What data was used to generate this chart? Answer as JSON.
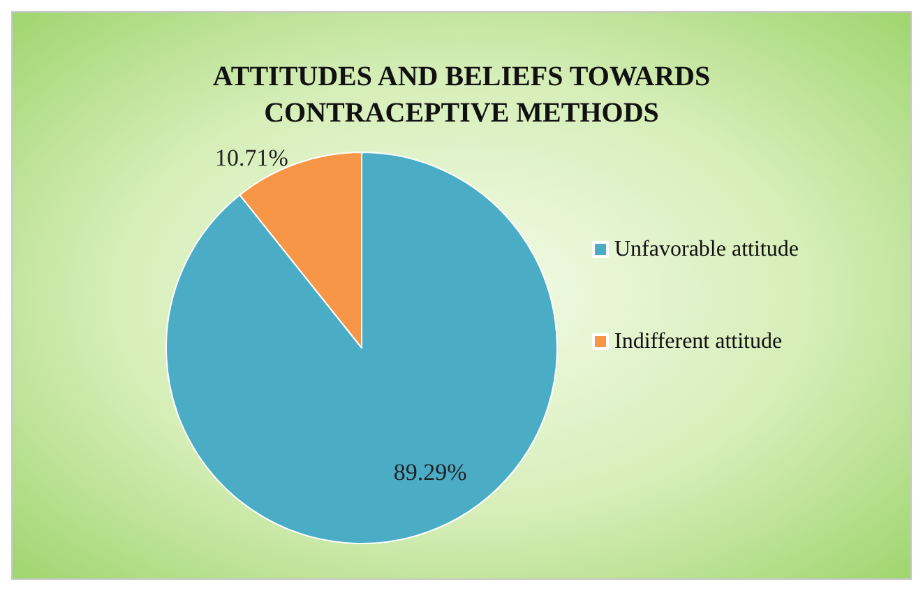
{
  "chart_data": {
    "type": "pie",
    "title": "ATTITUDES AND BELIEFS TOWARDS\nCONTRACEPTIVE METHODS",
    "categories": [
      "Unfavorable attitude",
      "Indifferent attitude"
    ],
    "values": [
      89.29,
      10.71
    ],
    "colors": [
      "#4bacc6",
      "#f79646"
    ],
    "value_labels": [
      "89.29%",
      "10.71%"
    ],
    "legend": "right"
  }
}
